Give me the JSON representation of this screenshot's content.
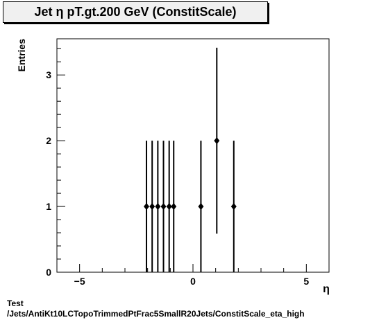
{
  "title": "Jet η pT.gt.200 GeV (ConstitScale)",
  "footer": {
    "line1": "Test",
    "line2": "/Jets/AntiKt10LCTopoTrimmedPtFrac5SmallR20Jets/ConstitScale_eta_high"
  },
  "chart_data": {
    "type": "scatter",
    "title": "Jet η pT.gt.200 GeV (ConstitScale)",
    "xlabel": "η",
    "ylabel": "Entries",
    "xlim": [
      -6,
      6
    ],
    "ylim": [
      0,
      3.55
    ],
    "xticks": [
      -5,
      0,
      5
    ],
    "xtick_labels": [
      "−5",
      "0",
      "5"
    ],
    "yticks": [
      0,
      1,
      2,
      3
    ],
    "ytick_labels": [
      "0",
      "1",
      "2",
      "3"
    ],
    "grid": false,
    "series": [
      {
        "x": [
          -2.05,
          -1.8,
          -1.55,
          -1.3,
          -1.05,
          -0.85,
          0.35,
          1.05,
          1.8
        ],
        "y": [
          1,
          1,
          1,
          1,
          1,
          1,
          1,
          2,
          1
        ],
        "yerr": [
          1,
          1,
          1,
          1,
          1,
          1,
          1,
          1.414,
          1
        ]
      }
    ]
  }
}
